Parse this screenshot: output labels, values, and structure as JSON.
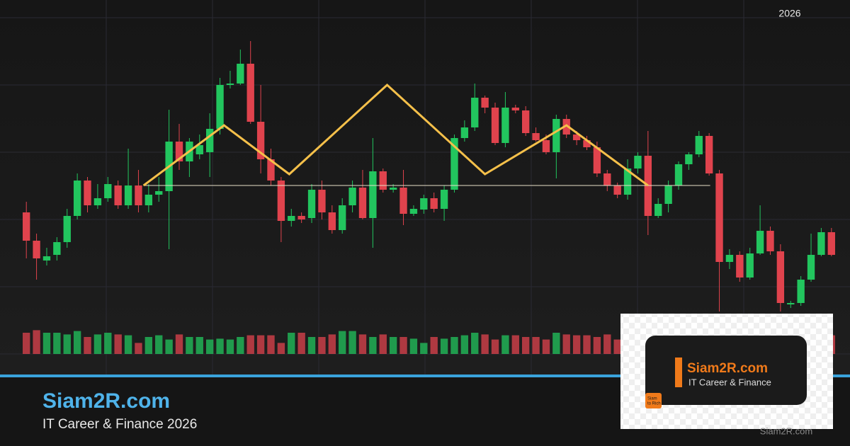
{
  "chart_data": {
    "type": "candlestick",
    "period_label": "2026",
    "xlim": [
      -0.5,
      79.5
    ],
    "ylim": [
      0,
      480
    ],
    "y2lim": [
      0,
      400
    ],
    "up_color": "#22c55e",
    "down_color": "#e0434d",
    "open": [
      200,
      160,
      132,
      140,
      158,
      195,
      245,
      210,
      220,
      238,
      210,
      238,
      210,
      225,
      230,
      300,
      272,
      282,
      285,
      318,
      380,
      382,
      410,
      328,
      275,
      245,
      188,
      195,
      192,
      232,
      200,
      175,
      210,
      235,
      192,
      258,
      232,
      235,
      198,
      204,
      220,
      205,
      232,
      305,
      320,
      362,
      348,
      298,
      348,
      344,
      312,
      302,
      285,
      332,
      310,
      302,
      292,
      255,
      238,
      225,
      262,
      280,
      195,
      212,
      238,
      268,
      282,
      308,
      255,
      130,
      140,
      108,
      142,
      174,
      145,
      70,
      72,
      105,
      140,
      172
    ],
    "high": [
      215,
      170,
      150,
      165,
      205,
      255,
      250,
      240,
      250,
      245,
      290,
      260,
      240,
      250,
      345,
      325,
      305,
      310,
      340,
      390,
      400,
      430,
      442,
      380,
      290,
      250,
      205,
      200,
      240,
      245,
      210,
      220,
      245,
      260,
      305,
      262,
      240,
      260,
      210,
      225,
      228,
      238,
      310,
      330,
      382,
      365,
      355,
      370,
      352,
      350,
      320,
      310,
      338,
      338,
      315,
      308,
      300,
      260,
      242,
      275,
      285,
      315,
      220,
      245,
      272,
      285,
      315,
      312,
      260,
      148,
      145,
      150,
      210,
      180,
      155,
      75,
      110,
      170,
      178,
      178
    ],
    "low": [
      135,
      105,
      125,
      132,
      150,
      190,
      200,
      205,
      215,
      205,
      205,
      200,
      200,
      215,
      148,
      260,
      250,
      275,
      250,
      310,
      375,
      380,
      325,
      255,
      238,
      158,
      180,
      185,
      185,
      190,
      170,
      170,
      200,
      190,
      150,
      228,
      228,
      182,
      195,
      198,
      200,
      188,
      228,
      300,
      315,
      340,
      295,
      292,
      340,
      308,
      300,
      282,
      248,
      305,
      295,
      288,
      250,
      230,
      220,
      218,
      255,
      168,
      192,
      200,
      232,
      260,
      278,
      252,
      60,
      120,
      102,
      105,
      140,
      140,
      60,
      65,
      68,
      102,
      138,
      138
    ],
    "close": [
      160,
      135,
      138,
      158,
      195,
      245,
      210,
      220,
      240,
      210,
      238,
      210,
      225,
      230,
      300,
      272,
      300,
      295,
      318,
      380,
      382,
      410,
      328,
      275,
      245,
      188,
      195,
      190,
      232,
      200,
      175,
      210,
      235,
      192,
      258,
      232,
      235,
      198,
      205,
      220,
      205,
      232,
      305,
      320,
      362,
      348,
      298,
      348,
      344,
      312,
      302,
      285,
      332,
      310,
      302,
      292,
      255,
      238,
      225,
      262,
      280,
      195,
      212,
      238,
      268,
      282,
      308,
      255,
      130,
      140,
      108,
      142,
      174,
      145,
      72,
      72,
      105,
      140,
      172,
      140
    ],
    "volume": [
      25,
      28,
      25,
      25,
      23,
      27,
      20,
      23,
      25,
      23,
      22,
      13,
      20,
      22,
      17,
      23,
      20,
      20,
      17,
      18,
      17,
      20,
      22,
      22,
      22,
      13,
      25,
      25,
      20,
      20,
      23,
      27,
      27,
      23,
      20,
      23,
      20,
      20,
      18,
      13,
      20,
      18,
      20,
      22,
      25,
      23,
      17,
      22,
      22,
      20,
      20,
      17,
      25,
      23,
      22,
      22,
      20,
      23,
      17,
      18,
      20,
      25,
      23,
      20,
      22,
      25,
      22,
      20,
      23,
      22,
      22,
      20,
      25,
      23,
      22,
      23,
      25,
      22,
      20,
      22
    ],
    "pattern": {
      "color": "#f5c04a",
      "x": [
        11.5,
        19.4,
        25.8,
        35.4,
        45.0,
        53.0,
        61.0
      ],
      "y": [
        238,
        323,
        254,
        380,
        254,
        323,
        238
      ]
    },
    "neckline": {
      "color": "#e8e0c8",
      "x": [
        11.5,
        67.1
      ],
      "y": [
        238,
        238
      ]
    }
  },
  "branding": {
    "title": "Siam2R.com",
    "subtitle": "IT Career & Finance 2026"
  },
  "logo": {
    "name": "Siam2R.com",
    "tagline": "IT Career & Finance",
    "badge_top": "Siam",
    "badge_bottom": "to Rich"
  },
  "watermark": "Siam2R.com"
}
